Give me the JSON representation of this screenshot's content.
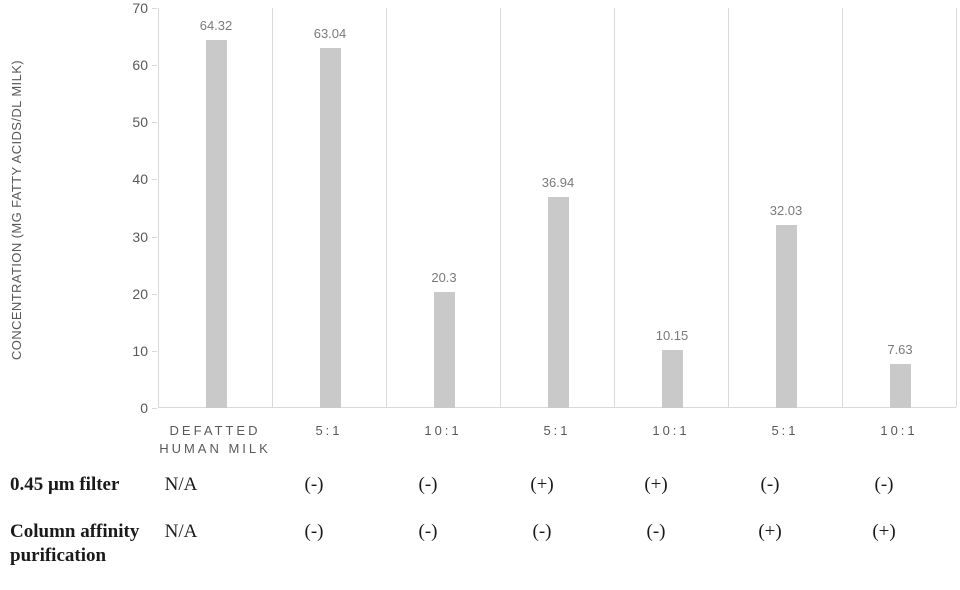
{
  "chart_data": {
    "type": "bar",
    "title": "",
    "xlabel": "",
    "ylabel": "CONCENTRATION (MG FATTY ACIDS/DL MILK)",
    "categories": [
      "DEFATTED HUMAN MILK",
      "5:1",
      "10:1",
      "5:1",
      "10:1",
      "5:1",
      "10:1"
    ],
    "values": [
      64.32,
      63.04,
      20.3,
      36.94,
      10.15,
      32.03,
      7.63
    ],
    "value_labels": [
      "64.32",
      "63.04",
      "20.3",
      "36.94",
      "10.15",
      "32.03",
      "7.63"
    ],
    "ylim": [
      0,
      70
    ],
    "yticks": [
      0,
      10,
      20,
      30,
      40,
      50,
      60,
      70
    ],
    "grid": "vertical-panel-separators-only",
    "legend": "none",
    "bar_color": "#c9c9c9",
    "separator_color": "#d9d9d9",
    "axis_text_color": "#595959",
    "value_label_color": "#7a7a7a"
  },
  "condition_table": {
    "rows": [
      {
        "label": "0.45 μm filter",
        "values": [
          "N/A",
          "(-)",
          "(-)",
          "(+)",
          "(+)",
          "(-)",
          "(-)"
        ]
      },
      {
        "label": "Column affinity purification",
        "values": [
          "N/A",
          "(-)",
          "(-)",
          "(-)",
          "(-)",
          "(+)",
          "(+)"
        ]
      }
    ]
  }
}
